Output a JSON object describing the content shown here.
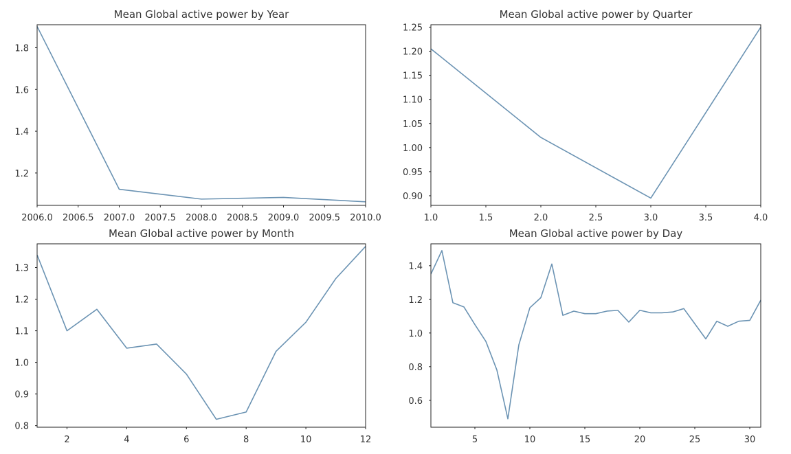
{
  "line_color": "#6b93b3",
  "chart_data": [
    {
      "type": "line",
      "title": "Mean Global active power by Year",
      "x": [
        2006,
        2007,
        2008,
        2009,
        2010
      ],
      "series": [
        {
          "values": [
            1.902,
            1.122,
            1.075,
            1.083,
            1.062
          ]
        }
      ],
      "xlim": [
        2006,
        2010
      ],
      "ylim": [
        1.045,
        1.91
      ],
      "xticks": [
        2006.0,
        2006.5,
        2007.0,
        2007.5,
        2008.0,
        2008.5,
        2009.0,
        2009.5,
        2010.0
      ],
      "xtick_labels": [
        "2006.0",
        "2006.5",
        "2007.0",
        "2007.5",
        "2008.0",
        "2008.5",
        "2009.0",
        "2009.5",
        "2010.0"
      ],
      "yticks": [
        1.2,
        1.4,
        1.6,
        1.8
      ],
      "ytick_labels": [
        "1.2",
        "1.4",
        "1.6",
        "1.8"
      ],
      "grid": false
    },
    {
      "type": "line",
      "title": "Mean Global active power by Quarter",
      "x": [
        1,
        2,
        3,
        4
      ],
      "series": [
        {
          "values": [
            1.205,
            1.021,
            0.895,
            1.25
          ]
        }
      ],
      "xlim": [
        1,
        4
      ],
      "ylim": [
        0.88,
        1.255
      ],
      "xticks": [
        1.0,
        1.5,
        2.0,
        2.5,
        3.0,
        3.5,
        4.0
      ],
      "xtick_labels": [
        "1.0",
        "1.5",
        "2.0",
        "2.5",
        "3.0",
        "3.5",
        "4.0"
      ],
      "yticks": [
        0.9,
        0.95,
        1.0,
        1.05,
        1.1,
        1.15,
        1.2,
        1.25
      ],
      "ytick_labels": [
        "0.90",
        "0.95",
        "1.00",
        "1.05",
        "1.10",
        "1.15",
        "1.20",
        "1.25"
      ],
      "grid": false
    },
    {
      "type": "line",
      "title": "Mean Global active power by Month",
      "x": [
        1,
        2,
        3,
        4,
        5,
        6,
        7,
        8,
        9,
        10,
        11,
        12
      ],
      "series": [
        {
          "values": [
            1.34,
            1.1,
            1.168,
            1.045,
            1.058,
            0.963,
            0.82,
            0.843,
            1.035,
            1.127,
            1.265,
            1.367
          ]
        }
      ],
      "xlim": [
        1,
        12
      ],
      "ylim": [
        0.795,
        1.375
      ],
      "xticks": [
        2,
        4,
        6,
        8,
        10,
        12
      ],
      "xtick_labels": [
        "2",
        "4",
        "6",
        "8",
        "10",
        "12"
      ],
      "yticks": [
        0.8,
        0.9,
        1.0,
        1.1,
        1.2,
        1.3
      ],
      "ytick_labels": [
        "0.8",
        "0.9",
        "1.0",
        "1.1",
        "1.2",
        "1.3"
      ],
      "grid": false
    },
    {
      "type": "line",
      "title": "Mean Global active power by Day",
      "x": [
        1,
        2,
        3,
        4,
        5,
        6,
        7,
        8,
        9,
        10,
        11,
        12,
        13,
        14,
        15,
        16,
        17,
        18,
        19,
        20,
        21,
        22,
        23,
        24,
        25,
        26,
        27,
        28,
        29,
        30,
        31
      ],
      "series": [
        {
          "values": [
            1.35,
            1.49,
            1.18,
            1.155,
            1.05,
            0.95,
            0.78,
            0.49,
            0.93,
            1.15,
            1.21,
            1.41,
            1.105,
            1.13,
            1.115,
            1.115,
            1.13,
            1.135,
            1.065,
            1.135,
            1.12,
            1.12,
            1.125,
            1.145,
            1.055,
            0.965,
            1.07,
            1.04,
            1.07,
            1.075,
            1.195
          ]
        }
      ],
      "xlim": [
        1,
        31
      ],
      "ylim": [
        0.44,
        1.53
      ],
      "xticks": [
        5,
        10,
        15,
        20,
        25,
        30
      ],
      "xtick_labels": [
        "5",
        "10",
        "15",
        "20",
        "25",
        "30"
      ],
      "yticks": [
        0.6,
        0.8,
        1.0,
        1.2,
        1.4
      ],
      "ytick_labels": [
        "0.6",
        "0.8",
        "1.0",
        "1.2",
        "1.4"
      ],
      "grid": false
    }
  ]
}
